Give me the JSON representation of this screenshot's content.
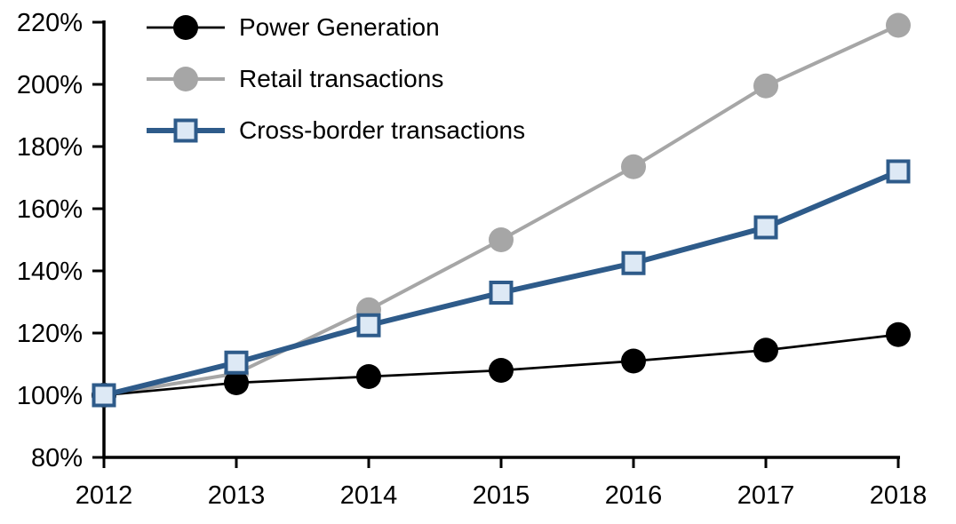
{
  "chart_data": {
    "type": "line",
    "x": [
      2012,
      2013,
      2014,
      2015,
      2016,
      2017,
      2018
    ],
    "xtick_labels": [
      "2012",
      "2013",
      "2014",
      "2015",
      "2016",
      "2017",
      "2018"
    ],
    "series": [
      {
        "name": "Power Generation",
        "values": [
          100,
          104,
          106,
          108,
          111,
          114.5,
          119.5
        ],
        "color": "#000000",
        "marker": "circle",
        "marker_fill": "#000000",
        "line_width": 2.7
      },
      {
        "name": "Retail transactions",
        "values": [
          100,
          107,
          127.5,
          150,
          173.5,
          199.5,
          219
        ],
        "color": "#a6a6a6",
        "marker": "circle",
        "marker_fill": "#a6a6a6",
        "line_width": 4
      },
      {
        "name": "Cross-border transactions",
        "values": [
          100,
          110.5,
          122.5,
          133,
          142.5,
          154,
          172
        ],
        "color": "#2e5b8a",
        "marker": "square",
        "marker_fill": "#dde9f5",
        "line_width": 6
      }
    ],
    "ylim": [
      80,
      220
    ],
    "ytick_step": 20,
    "ytick_labels": [
      "80%",
      "100%",
      "120%",
      "140%",
      "160%",
      "180%",
      "200%",
      "220%"
    ],
    "legend_position": "top-left",
    "grid": false,
    "axis_color": "#000000",
    "background_color": "#ffffff"
  }
}
